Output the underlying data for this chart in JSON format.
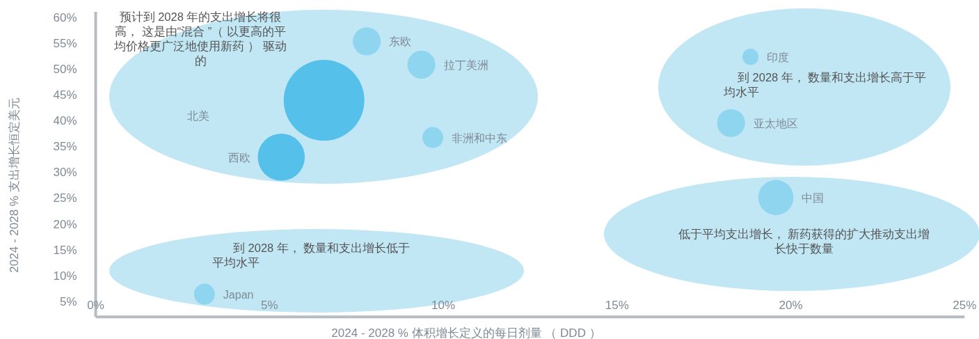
{
  "chart_data": {
    "type": "bubble",
    "xlabel": "2024 - 2028 % 体积增长定义的每日剂量 （ DDD ）",
    "ylabel": "2024 - 2028 % 支出增长恒定美元",
    "xlim": [
      0,
      25
    ],
    "ylim": [
      2,
      61
    ],
    "xticks": [
      {
        "value": 0,
        "label": "0%"
      },
      {
        "value": 5,
        "label": "5%"
      },
      {
        "value": 10,
        "label": "10%"
      },
      {
        "value": 15,
        "label": "15%"
      },
      {
        "value": 20,
        "label": "20%"
      },
      {
        "value": 25,
        "label": "25%"
      }
    ],
    "yticks": [
      {
        "value": 5,
        "label": "5%"
      },
      {
        "value": 10,
        "label": "10%"
      },
      {
        "value": 15,
        "label": "15%"
      },
      {
        "value": 20,
        "label": "20%"
      },
      {
        "value": 25,
        "label": "25%"
      },
      {
        "value": 30,
        "label": "30%"
      },
      {
        "value": 35,
        "label": "35%"
      },
      {
        "value": 40,
        "label": "40%"
      },
      {
        "value": 45,
        "label": "45%"
      },
      {
        "value": 50,
        "label": "50%"
      },
      {
        "value": 55,
        "label": "55%"
      },
      {
        "value": 60,
        "label": "60%"
      }
    ],
    "annotations": [
      "预计到 2028 年的支出增长将很高， 这是由“混合 ”（ 以更高的平均价格更广泛地使用新药 ） 驱动的",
      "到 2028 年， 数量和支出增长高于平均水平",
      "低于平均支出增长， 新药获得的扩大推动支出增长快于数量",
      "到 2028 年， 数量和支出增长低于平均水平"
    ],
    "series": [
      {
        "name": "北美",
        "color": "#55c0e9",
        "x": [
          6.57
        ],
        "values": [
          43.9
        ],
        "sizes": [
          1
        ]
      },
      {
        "name": "西欧",
        "color": "#55c0e9",
        "x": [
          5.34
        ],
        "values": [
          32.9
        ],
        "sizes": [
          0.34
        ]
      },
      {
        "name": "东欧",
        "color": "#8fd5f0",
        "x": [
          7.8
        ],
        "values": [
          55.3
        ],
        "sizes": [
          0.12
        ]
      },
      {
        "name": "拉丁美洲",
        "color": "#8fd5f0",
        "x": [
          9.37
        ],
        "values": [
          50.8
        ],
        "sizes": [
          0.12
        ]
      },
      {
        "name": "非洲和中东",
        "color": "#8fd5f0",
        "x": [
          9.7
        ],
        "values": [
          36.7
        ],
        "sizes": [
          0.067
        ]
      },
      {
        "name": "Japan",
        "color": "#8fd5f0",
        "x": [
          3.13
        ],
        "values": [
          6.4
        ],
        "sizes": [
          0.067
        ]
      },
      {
        "name": "印度",
        "color": "#8fd5f0",
        "x": [
          18.84
        ],
        "values": [
          52.3
        ],
        "sizes": [
          0.04
        ]
      },
      {
        "name": "亚太地区",
        "color": "#8fd5f0",
        "x": [
          18.28
        ],
        "values": [
          39.5
        ],
        "sizes": [
          0.12
        ]
      },
      {
        "name": "中国",
        "color": "#8fd5f0",
        "x": [
          19.57
        ],
        "values": [
          25.1
        ],
        "sizes": [
          0.19
        ]
      }
    ]
  }
}
